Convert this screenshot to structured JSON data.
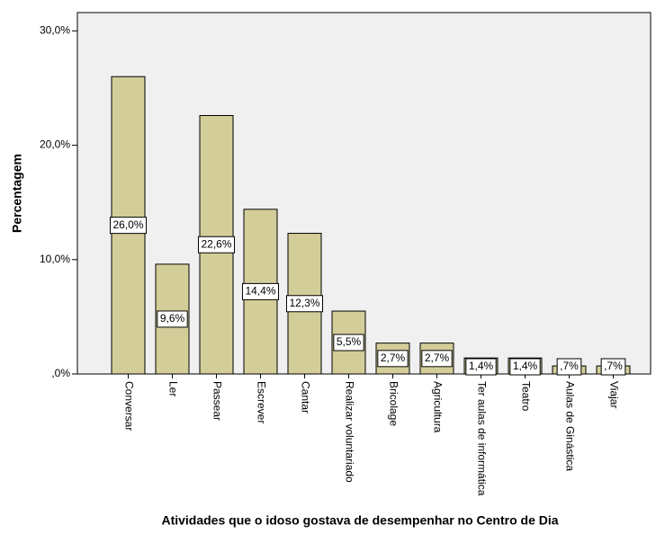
{
  "chart_data": {
    "type": "bar",
    "x_label": "Atividades que o idoso gostava de desempenhar no Centro de Dia",
    "y_label": "Percentagem",
    "categories": [
      "Conversar",
      "Ler",
      "Passear",
      "Escrever",
      "Cantar",
      "Realizar voluntariado",
      "Bricolage",
      "Agricultura",
      "Ter aulas de informática",
      "Teatro",
      "Aulas de Ginástica",
      "Viajar"
    ],
    "values": [
      26.0,
      9.6,
      22.6,
      14.4,
      12.3,
      5.5,
      2.7,
      2.7,
      1.4,
      1.4,
      0.7,
      0.7
    ],
    "value_labels": [
      "26,0%",
      "9,6%",
      "22,6%",
      "14,4%",
      "12,3%",
      "5,5%",
      "2,7%",
      "2,7%",
      "1,4%",
      "1,4%",
      ",7%",
      ",7%"
    ],
    "color": "#d3cd99",
    "ylim": [
      0,
      31.6
    ],
    "yticks": [
      {
        "value": 0,
        "label": ",0%"
      },
      {
        "value": 10,
        "label": "10,0%"
      },
      {
        "value": 20,
        "label": "20,0%"
      },
      {
        "value": 30,
        "label": "30,0%"
      }
    ]
  }
}
